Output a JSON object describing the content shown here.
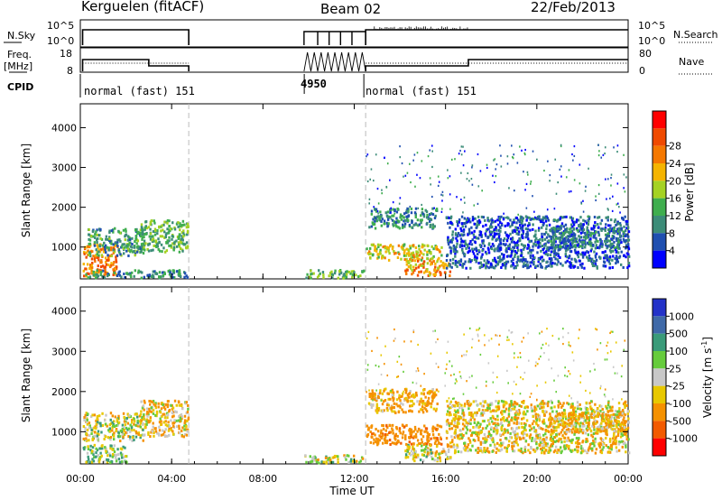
{
  "header": {
    "station": "Kerguelen (fitACF)",
    "beam": "Beam 02",
    "date": "22/Feb/2013"
  },
  "aux": {
    "nsky_label": "N.Sky",
    "nsky_ticks": [
      "10^5",
      "10^0"
    ],
    "nsearch_label": "N.Search",
    "nsearch_ticks": [
      "10^5",
      "10^0"
    ],
    "freq_label_1": "Freq.",
    "freq_label_2": "[MHz]",
    "freq_ticks": [
      "18",
      "8"
    ],
    "nave_label": "Nave",
    "nave_ticks": [
      "80",
      "0"
    ],
    "cpid_label": "CPID",
    "cpid_modes": [
      {
        "text": "normal (fast) 151",
        "start_hour": 0
      },
      {
        "text": "4950",
        "start_hour": 9.85
      },
      {
        "text": "normal (fast) 151",
        "start_hour": 12.5
      }
    ]
  },
  "colors": {
    "power": [
      "#0000ff",
      "#1f4fb0",
      "#3c8c78",
      "#3fae4e",
      "#a5d223",
      "#f5b400",
      "#f57800",
      "#f04a00",
      "#ff0000"
    ],
    "velocity": [
      "#2332c8",
      "#3f69a8",
      "#3a9b79",
      "#66cc3c",
      "#c8c8c8",
      "#e8c800",
      "#f59100",
      "#f25a00",
      "#ff0000"
    ]
  },
  "chart_data": [
    {
      "type": "heatmap",
      "panel": "power",
      "ylabel": "Slant Range [km]",
      "yticks": [
        1000,
        2000,
        3000,
        4000
      ],
      "ylim": [
        200,
        4600
      ],
      "xlim": [
        0,
        24
      ],
      "colorbar_label": "Power [dB]",
      "colorbar_ticks": [
        "4",
        "8",
        "12",
        "16",
        "20",
        "24",
        "28"
      ],
      "data_gap_hours": [
        4.75,
        12.5
      ],
      "regions": [
        {
          "start": 0.1,
          "end": 1.6,
          "range_min": 300,
          "range_max": 1100,
          "dB": 26
        },
        {
          "start": 0.3,
          "end": 2.8,
          "range_min": 800,
          "range_max": 1500,
          "dB": 12
        },
        {
          "start": 2.6,
          "end": 4.7,
          "range_min": 900,
          "range_max": 1700,
          "dB": 14
        },
        {
          "start": 0.2,
          "end": 4.7,
          "range_min": 250,
          "range_max": 450,
          "dB": 10
        },
        {
          "start": 12.5,
          "end": 15.8,
          "range_min": 700,
          "range_max": 1100,
          "dB": 20
        },
        {
          "start": 12.6,
          "end": 15.6,
          "range_min": 1500,
          "range_max": 2000,
          "dB": 10
        },
        {
          "start": 14.2,
          "end": 16.2,
          "range_min": 300,
          "range_max": 700,
          "dB": 24
        },
        {
          "start": 16.0,
          "end": 24.0,
          "range_min": 500,
          "range_max": 1800,
          "dB": 6
        },
        {
          "start": 20.5,
          "end": 23.9,
          "range_min": 1000,
          "range_max": 1500,
          "dB": 10
        },
        {
          "start": 9.8,
          "end": 12.4,
          "range_min": 250,
          "range_max": 450,
          "dB": 14
        }
      ]
    },
    {
      "type": "heatmap",
      "panel": "velocity",
      "ylabel": "Slant Range [km]",
      "yticks": [
        1000,
        2000,
        3000,
        4000
      ],
      "ylim": [
        200,
        4600
      ],
      "xlim": [
        0,
        24
      ],
      "xticks": [
        "00:00",
        "04:00",
        "08:00",
        "12:00",
        "16:00",
        "20:00",
        "00:00"
      ],
      "xlabel": "Time UT",
      "colorbar_label": "Velocity [m s^-1]",
      "colorbar_ticks": [
        "1000",
        "500",
        "100",
        "25",
        "-25",
        "-100",
        "-500",
        "-1000"
      ],
      "data_gap_hours": [
        4.75,
        12.5
      ],
      "regions": [
        {
          "start": 0.1,
          "end": 2.8,
          "range_min": 800,
          "range_max": 1500,
          "v": 0
        },
        {
          "start": 0.1,
          "end": 2.0,
          "range_min": 250,
          "range_max": 700,
          "v": 60
        },
        {
          "start": 2.6,
          "end": 4.7,
          "range_min": 900,
          "range_max": 1800,
          "v": -80
        },
        {
          "start": 12.5,
          "end": 15.8,
          "range_min": 700,
          "range_max": 1200,
          "v": -400
        },
        {
          "start": 12.6,
          "end": 15.6,
          "range_min": 1500,
          "range_max": 2100,
          "v": -150
        },
        {
          "start": 14.2,
          "end": 16.2,
          "range_min": 300,
          "range_max": 700,
          "v": 0
        },
        {
          "start": 16.0,
          "end": 24.0,
          "range_min": 500,
          "range_max": 1800,
          "v": -60
        },
        {
          "start": 20.5,
          "end": 23.9,
          "range_min": 1000,
          "range_max": 1500,
          "v": -120
        },
        {
          "start": 9.8,
          "end": 12.4,
          "range_min": 250,
          "range_max": 450,
          "v": 0
        }
      ]
    }
  ]
}
